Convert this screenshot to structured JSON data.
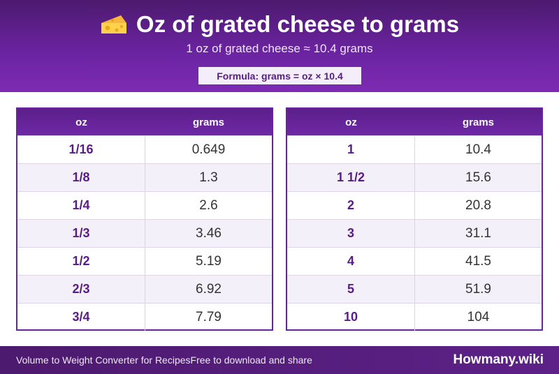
{
  "header": {
    "icon": "cheese-icon",
    "title": "Oz of grated cheese to grams",
    "subtitle": "1 oz of grated cheese ≈ 10.4 grams",
    "formula": "Formula: grams = oz × 10.4"
  },
  "tables": [
    {
      "headers": [
        "oz",
        "grams"
      ],
      "rows": [
        [
          "1/16",
          "0.649"
        ],
        [
          "1/8",
          "1.3"
        ],
        [
          "1/4",
          "2.6"
        ],
        [
          "1/3",
          "3.46"
        ],
        [
          "1/2",
          "5.19"
        ],
        [
          "2/3",
          "6.92"
        ],
        [
          "3/4",
          "7.79"
        ]
      ]
    },
    {
      "headers": [
        "oz",
        "grams"
      ],
      "rows": [
        [
          "1",
          "10.4"
        ],
        [
          "1 1/2",
          "15.6"
        ],
        [
          "2",
          "20.8"
        ],
        [
          "3",
          "31.1"
        ],
        [
          "4",
          "41.5"
        ],
        [
          "5",
          "51.9"
        ],
        [
          "10",
          "104"
        ]
      ]
    }
  ],
  "footer": {
    "left_text": "Volume to Weight Converter for RecipesFree to download and share",
    "brand": "Howmany.wiki"
  },
  "colors": {
    "accent": "#6a23a0",
    "accent_dark": "#4c1a6e",
    "row_alt": "#f4f0f9"
  }
}
